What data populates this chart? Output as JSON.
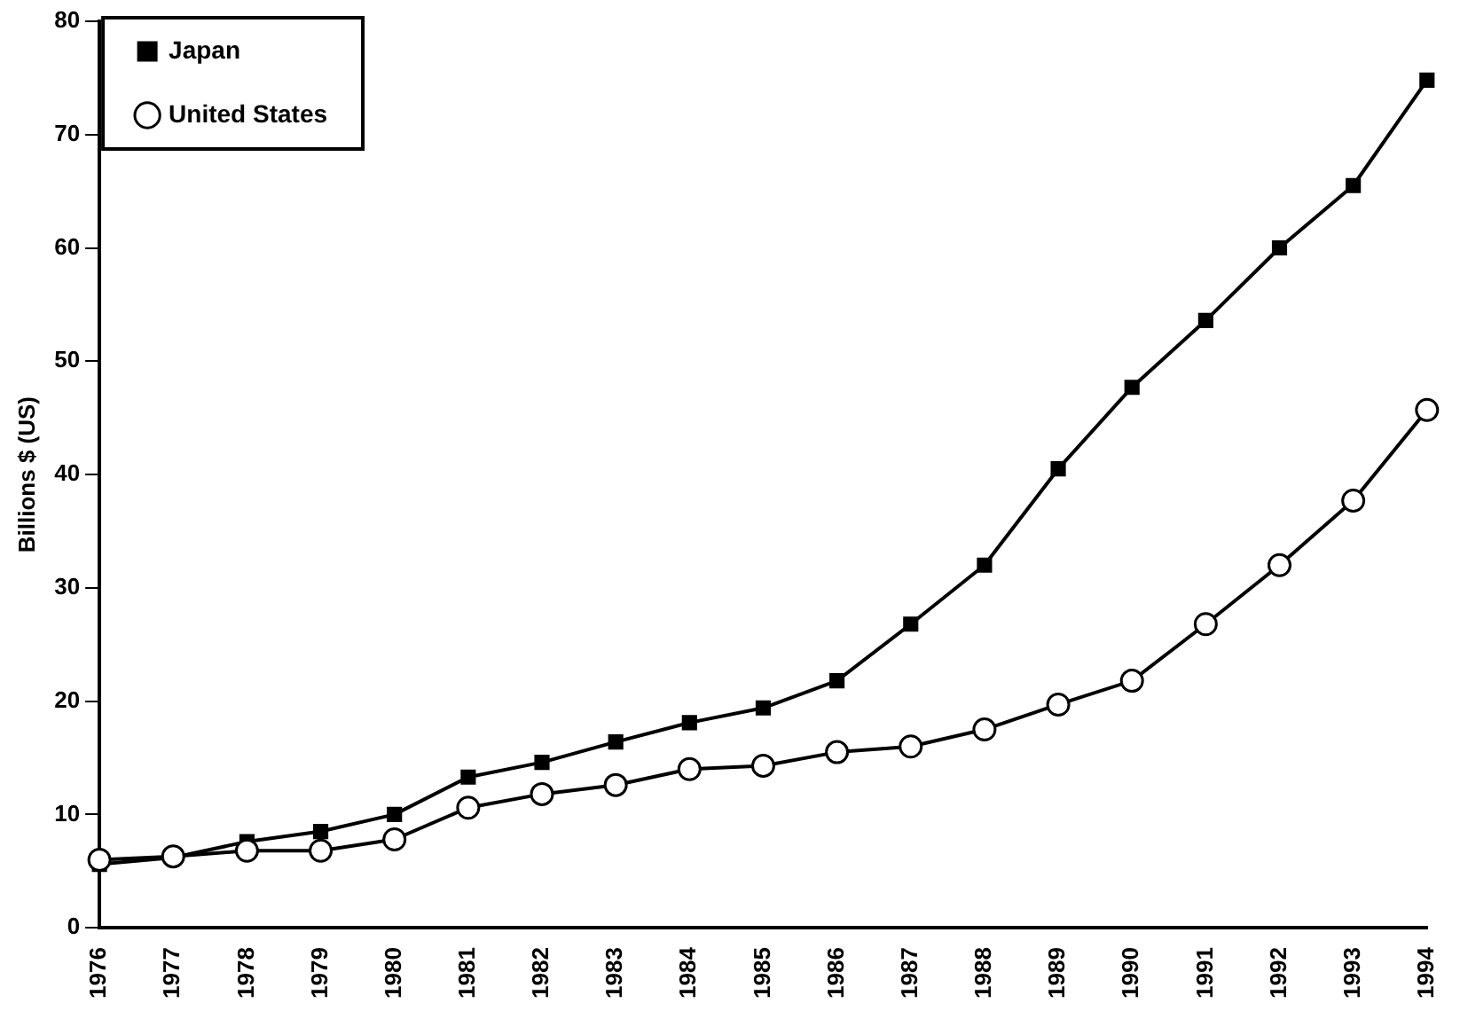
{
  "chart_data": {
    "type": "line",
    "ylabel": "Billions $ (US)",
    "categories": [
      "1976",
      "1977",
      "1978",
      "1979",
      "1980",
      "1981",
      "1982",
      "1983",
      "1984",
      "1985",
      "1986",
      "1987",
      "1988",
      "1989",
      "1990",
      "1991",
      "1992",
      "1993",
      "1994"
    ],
    "series": [
      {
        "name": "Japan",
        "color": "#000000",
        "marker": "square",
        "values": [
          5.6,
          6.2,
          7.6,
          8.5,
          10,
          13.3,
          14.6,
          16.4,
          18.1,
          19.4,
          21.8,
          26.8,
          32,
          40.5,
          47.7,
          53.6,
          60,
          65.5,
          74.8
        ]
      },
      {
        "name": "United States",
        "color": "#000000",
        "marker": "circle",
        "values": [
          6,
          6.3,
          6.8,
          6.8,
          7.8,
          10.6,
          11.8,
          12.6,
          14,
          14.3,
          15.5,
          16,
          17.5,
          19.7,
          21.8,
          26.8,
          32,
          37.7,
          45.7
        ]
      }
    ],
    "ylim": [
      0,
      80
    ],
    "yticks": [
      0,
      10,
      20,
      30,
      40,
      50,
      60,
      70,
      80
    ],
    "grid": false,
    "legend": "top left",
    "line_style": "solid"
  }
}
